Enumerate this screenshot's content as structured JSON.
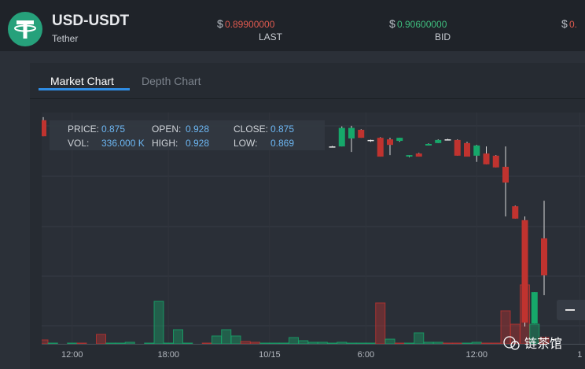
{
  "header": {
    "pair": "USD-USDT",
    "name": "Tether",
    "prices": [
      {
        "currency": "$",
        "value": "0.89900000",
        "label": "LAST",
        "color": "#e05a4f"
      },
      {
        "currency": "$",
        "value": "0.90600000",
        "label": "BID",
        "color": "#3fbf7f"
      },
      {
        "currency": "$",
        "value": "0.",
        "color": "#e05a4f"
      }
    ]
  },
  "tabs": [
    "Market Chart",
    "Depth Chart"
  ],
  "info": {
    "rows": [
      [
        {
          "label": "PRICE:",
          "value": "0.875"
        },
        {
          "label": "OPEN:",
          "value": "0.928"
        },
        {
          "label": "CLOSE:",
          "value": "0.875"
        }
      ],
      [
        {
          "label": "VOL:",
          "value": "336.000 K"
        },
        {
          "label": "HIGH:",
          "value": "0.928"
        },
        {
          "label": "LOW:",
          "value": "0.869"
        }
      ]
    ]
  },
  "watermark": "链茶馆",
  "chart": {
    "up_color": "#16a86a",
    "down_color": "#c0332f",
    "ylim": [
      0.86,
      0.935
    ],
    "vlim": [
      0,
      100
    ],
    "xticks": [
      {
        "slot": 3,
        "label": "12:00"
      },
      {
        "slot": 13,
        "label": "18:00"
      },
      {
        "slot": 23.5,
        "label": "10/15"
      },
      {
        "slot": 33.5,
        "label": "6:00"
      },
      {
        "slot": 45,
        "label": "12:00"
      },
      {
        "slot": 55.7,
        "label": "1"
      }
    ],
    "candles": [
      {
        "open": 0.9325,
        "high": 0.9335,
        "low": 0.9273,
        "close": 0.9273
      },
      null,
      null,
      null,
      null,
      null,
      null,
      null,
      null,
      null,
      null,
      null,
      null,
      null,
      null,
      null,
      null,
      null,
      null,
      null,
      null,
      null,
      null,
      null,
      null,
      null,
      null,
      null,
      null,
      null,
      {
        "open": 0.924,
        "high": 0.9242,
        "low": 0.9238,
        "close": 0.9238
      },
      {
        "open": 0.924,
        "high": 0.9305,
        "low": 0.924,
        "close": 0.93
      },
      {
        "open": 0.9266,
        "high": 0.9307,
        "low": 0.9222,
        "close": 0.93
      },
      {
        "open": 0.9294,
        "high": 0.9296,
        "low": 0.9268,
        "close": 0.9268
      },
      {
        "open": 0.9258,
        "high": 0.9262,
        "low": 0.9255,
        "close": 0.9261
      },
      {
        "open": 0.9268,
        "high": 0.927,
        "low": 0.9207,
        "close": 0.9207
      },
      {
        "open": 0.9263,
        "high": 0.9268,
        "low": 0.9212,
        "close": 0.9245
      },
      {
        "open": 0.9258,
        "high": 0.9268,
        "low": 0.9255,
        "close": 0.9268
      },
      {
        "open": 0.9207,
        "high": 0.9212,
        "low": 0.9205,
        "close": 0.9212
      },
      {
        "open": 0.9217,
        "high": 0.9219,
        "low": 0.9207,
        "close": 0.9207
      },
      {
        "open": 0.9243,
        "high": 0.925,
        "low": 0.9243,
        "close": 0.9248
      },
      {
        "open": 0.9251,
        "high": 0.9263,
        "low": 0.9251,
        "close": 0.9261
      },
      {
        "open": 0.9263,
        "high": 0.9265,
        "low": 0.9261,
        "close": 0.9262
      },
      {
        "open": 0.9261,
        "high": 0.9263,
        "low": 0.921,
        "close": 0.921
      },
      {
        "open": 0.9251,
        "high": 0.9255,
        "low": 0.9207,
        "close": 0.9207
      },
      {
        "open": 0.921,
        "high": 0.9245,
        "low": 0.919,
        "close": 0.9243
      },
      {
        "open": 0.9217,
        "high": 0.924,
        "low": 0.9182,
        "close": 0.9182
      },
      {
        "open": 0.921,
        "high": 0.9212,
        "low": 0.9172,
        "close": 0.9172
      },
      {
        "open": 0.9174,
        "high": 0.924,
        "low": 0.9013,
        "close": 0.9123
      },
      {
        "open": 0.9046,
        "high": 0.9048,
        "low": 0.9006,
        "close": 0.9006
      },
      {
        "open": 0.9001,
        "high": 0.9013,
        "low": 0.8656,
        "close": 0.8669
      },
      {
        "open": 0.8666,
        "high": 0.8768,
        "low": 0.8666,
        "close": 0.8768
      },
      {
        "open": 0.8942,
        "high": 0.9064,
        "low": 0.8758,
        "close": 0.8822
      }
    ],
    "volume": [
      {
        "value": 5,
        "up": false
      },
      {
        "value": 1,
        "up": true
      },
      {
        "value": 0,
        "up": true
      },
      {
        "value": 1,
        "up": true
      },
      {
        "value": 1,
        "up": false
      },
      {
        "value": 0,
        "up": true
      },
      {
        "value": 12,
        "up": false
      },
      {
        "value": 1,
        "up": true
      },
      {
        "value": 1,
        "up": true
      },
      {
        "value": 2,
        "up": true
      },
      {
        "value": 0,
        "up": true
      },
      {
        "value": 1,
        "up": true
      },
      {
        "value": 54,
        "up": true
      },
      {
        "value": 1,
        "up": true
      },
      {
        "value": 18,
        "up": true
      },
      {
        "value": 1,
        "up": true
      },
      {
        "value": 0,
        "up": true
      },
      {
        "value": 1,
        "up": false
      },
      {
        "value": 10,
        "up": true
      },
      {
        "value": 18,
        "up": true
      },
      {
        "value": 10,
        "up": true
      },
      {
        "value": 3,
        "up": false
      },
      {
        "value": 2,
        "up": false
      },
      {
        "value": 1,
        "up": true
      },
      {
        "value": 1,
        "up": true
      },
      {
        "value": 1,
        "up": true
      },
      {
        "value": 8,
        "up": true
      },
      {
        "value": 4,
        "up": true
      },
      {
        "value": 2,
        "up": true
      },
      {
        "value": 2,
        "up": true
      },
      {
        "value": 1,
        "up": true
      },
      {
        "value": 2,
        "up": true
      },
      {
        "value": 1,
        "up": true
      },
      {
        "value": 1,
        "up": true
      },
      {
        "value": 1,
        "up": true
      },
      {
        "value": 52,
        "up": false
      },
      {
        "value": 6,
        "up": true
      },
      {
        "value": 1,
        "up": false
      },
      {
        "value": 1,
        "up": true
      },
      {
        "value": 14,
        "up": true
      },
      {
        "value": 2,
        "up": true
      },
      {
        "value": 2,
        "up": true
      },
      {
        "value": 1,
        "up": false
      },
      {
        "value": 1,
        "up": false
      },
      {
        "value": 1,
        "up": true
      },
      {
        "value": 2,
        "up": true
      },
      {
        "value": 1,
        "up": false
      },
      {
        "value": 1,
        "up": false
      },
      {
        "value": 42,
        "up": false
      },
      {
        "value": 25,
        "up": false
      },
      {
        "value": 75,
        "up": false
      },
      {
        "value": 25,
        "up": true
      },
      {
        "value": 8,
        "up": false
      }
    ]
  }
}
